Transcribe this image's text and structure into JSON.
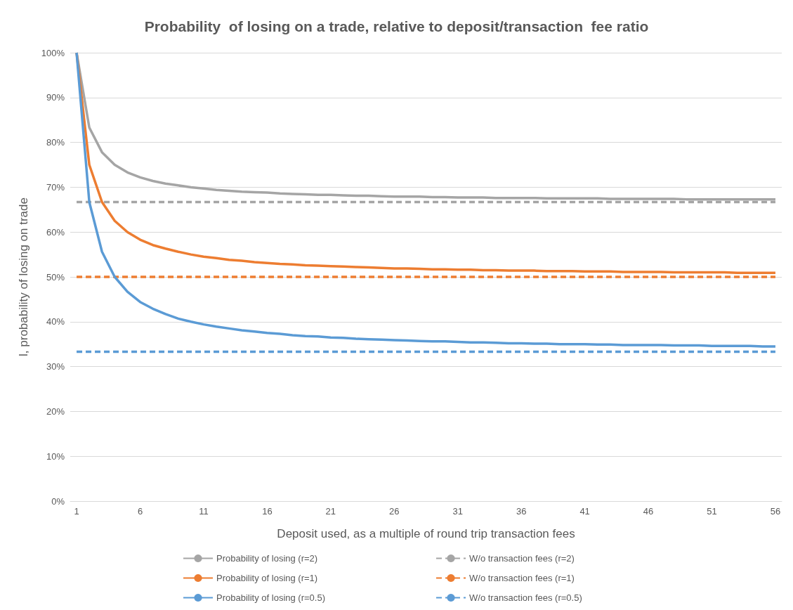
{
  "chart_data": {
    "type": "line",
    "title": "Probability  of losing on a trade, relative to deposit/transaction  fee ratio",
    "xlabel": "Deposit used, as a multiple of round trip transaction fees",
    "ylabel": "l, probability of losing on trade",
    "categories": [
      "1",
      null,
      null,
      null,
      null,
      "6",
      null,
      null,
      null,
      null,
      "11",
      null,
      null,
      null,
      null,
      "16",
      null,
      null,
      null,
      null,
      "21",
      null,
      null,
      null,
      null,
      "26",
      null,
      null,
      null,
      null,
      "31",
      null,
      null,
      null,
      null,
      "36",
      null,
      null,
      null,
      null,
      "41",
      null,
      null,
      null,
      null,
      "46",
      null,
      null,
      null,
      null,
      "51",
      null,
      null,
      null,
      null,
      "56"
    ],
    "series": [
      {
        "name": "Probability of losing (r=2)",
        "color": "#a5a5a5",
        "line_style": "solid",
        "values": [
          100,
          83.3,
          77.8,
          75.0,
          73.3,
          72.2,
          71.4,
          70.8,
          70.4,
          70.0,
          69.7,
          69.4,
          69.2,
          69.0,
          68.9,
          68.8,
          68.6,
          68.5,
          68.4,
          68.3,
          68.3,
          68.2,
          68.1,
          68.1,
          68.0,
          67.9,
          67.9,
          67.9,
          67.8,
          67.8,
          67.7,
          67.7,
          67.7,
          67.6,
          67.6,
          67.6,
          67.6,
          67.5,
          67.5,
          67.5,
          67.5,
          67.5,
          67.4,
          67.4,
          67.4,
          67.4,
          67.4,
          67.4,
          67.3,
          67.3,
          67.3,
          67.3,
          67.3,
          67.3,
          67.3,
          67.3
        ]
      },
      {
        "name": "W/o transaction fees (r=2)",
        "color": "#a5a5a5",
        "line_style": "dashed",
        "values": [
          66.7,
          66.7,
          66.7,
          66.7,
          66.7,
          66.7,
          66.7,
          66.7,
          66.7,
          66.7,
          66.7,
          66.7,
          66.7,
          66.7,
          66.7,
          66.7,
          66.7,
          66.7,
          66.7,
          66.7,
          66.7,
          66.7,
          66.7,
          66.7,
          66.7,
          66.7,
          66.7,
          66.7,
          66.7,
          66.7,
          66.7,
          66.7,
          66.7,
          66.7,
          66.7,
          66.7,
          66.7,
          66.7,
          66.7,
          66.7,
          66.7,
          66.7,
          66.7,
          66.7,
          66.7,
          66.7,
          66.7,
          66.7,
          66.7,
          66.7,
          66.7,
          66.7,
          66.7,
          66.7,
          66.7,
          66.7
        ]
      },
      {
        "name": "Probability of losing (r=1)",
        "color": "#ed7d31",
        "line_style": "solid",
        "values": [
          100,
          75,
          66.7,
          62.5,
          60,
          58.3,
          57.1,
          56.3,
          55.6,
          55,
          54.5,
          54.2,
          53.8,
          53.6,
          53.3,
          53.1,
          52.9,
          52.8,
          52.6,
          52.5,
          52.4,
          52.3,
          52.2,
          52.1,
          52,
          51.9,
          51.9,
          51.8,
          51.7,
          51.7,
          51.6,
          51.6,
          51.5,
          51.5,
          51.4,
          51.4,
          51.4,
          51.3,
          51.3,
          51.3,
          51.2,
          51.2,
          51.2,
          51.1,
          51.1,
          51.1,
          51.1,
          51.0,
          51.0,
          51,
          51.0,
          51.0,
          50.9,
          50.9,
          50.9,
          50.9
        ]
      },
      {
        "name": "W/o transaction fees (r=1)",
        "color": "#ed7d31",
        "line_style": "dashed",
        "values": [
          50,
          50,
          50,
          50,
          50,
          50,
          50,
          50,
          50,
          50,
          50,
          50,
          50,
          50,
          50,
          50,
          50,
          50,
          50,
          50,
          50,
          50,
          50,
          50,
          50,
          50,
          50,
          50,
          50,
          50,
          50,
          50,
          50,
          50,
          50,
          50,
          50,
          50,
          50,
          50,
          50,
          50,
          50,
          50,
          50,
          50,
          50,
          50,
          50,
          50,
          50,
          50,
          50,
          50,
          50,
          50
        ]
      },
      {
        "name": "Probability of losing (r=0.5)",
        "color": "#5b9bd5",
        "line_style": "solid",
        "values": [
          100,
          66.7,
          55.6,
          50,
          46.7,
          44.4,
          42.9,
          41.7,
          40.7,
          40,
          39.4,
          38.9,
          38.5,
          38.1,
          37.8,
          37.5,
          37.3,
          37.0,
          36.8,
          36.7,
          36.5,
          36.4,
          36.2,
          36.1,
          36,
          35.9,
          35.8,
          35.7,
          35.6,
          35.6,
          35.5,
          35.4,
          35.4,
          35.3,
          35.2,
          35.2,
          35.1,
          35.1,
          35.0,
          35,
          35.0,
          34.9,
          34.9,
          34.8,
          34.8,
          34.8,
          34.8,
          34.7,
          34.7,
          34.7,
          34.6,
          34.6,
          34.6,
          34.6,
          34.5,
          34.5
        ]
      },
      {
        "name": "W/o transaction fees (r=0.5)",
        "color": "#5b9bd5",
        "line_style": "dashed",
        "values": [
          33.3,
          33.3,
          33.3,
          33.3,
          33.3,
          33.3,
          33.3,
          33.3,
          33.3,
          33.3,
          33.3,
          33.3,
          33.3,
          33.3,
          33.3,
          33.3,
          33.3,
          33.3,
          33.3,
          33.3,
          33.3,
          33.3,
          33.3,
          33.3,
          33.3,
          33.3,
          33.3,
          33.3,
          33.3,
          33.3,
          33.3,
          33.3,
          33.3,
          33.3,
          33.3,
          33.3,
          33.3,
          33.3,
          33.3,
          33.3,
          33.3,
          33.3,
          33.3,
          33.3,
          33.3,
          33.3,
          33.3,
          33.3,
          33.3,
          33.3,
          33.3,
          33.3,
          33.3,
          33.3,
          33.3,
          33.3
        ]
      }
    ],
    "ylim": [
      0,
      100
    ],
    "yticks": [
      {
        "value": 0,
        "label": "0%"
      },
      {
        "value": 10,
        "label": "10%"
      },
      {
        "value": 20,
        "label": "20%"
      },
      {
        "value": 30,
        "label": "30%"
      },
      {
        "value": 40,
        "label": "40%"
      },
      {
        "value": 50,
        "label": "50%"
      },
      {
        "value": 60,
        "label": "60%"
      },
      {
        "value": 70,
        "label": "70%"
      },
      {
        "value": 80,
        "label": "80%"
      },
      {
        "value": 90,
        "label": "90%"
      },
      {
        "value": 100,
        "label": "100%"
      }
    ],
    "grid": "y",
    "legend": "bottom",
    "marker": "none"
  }
}
